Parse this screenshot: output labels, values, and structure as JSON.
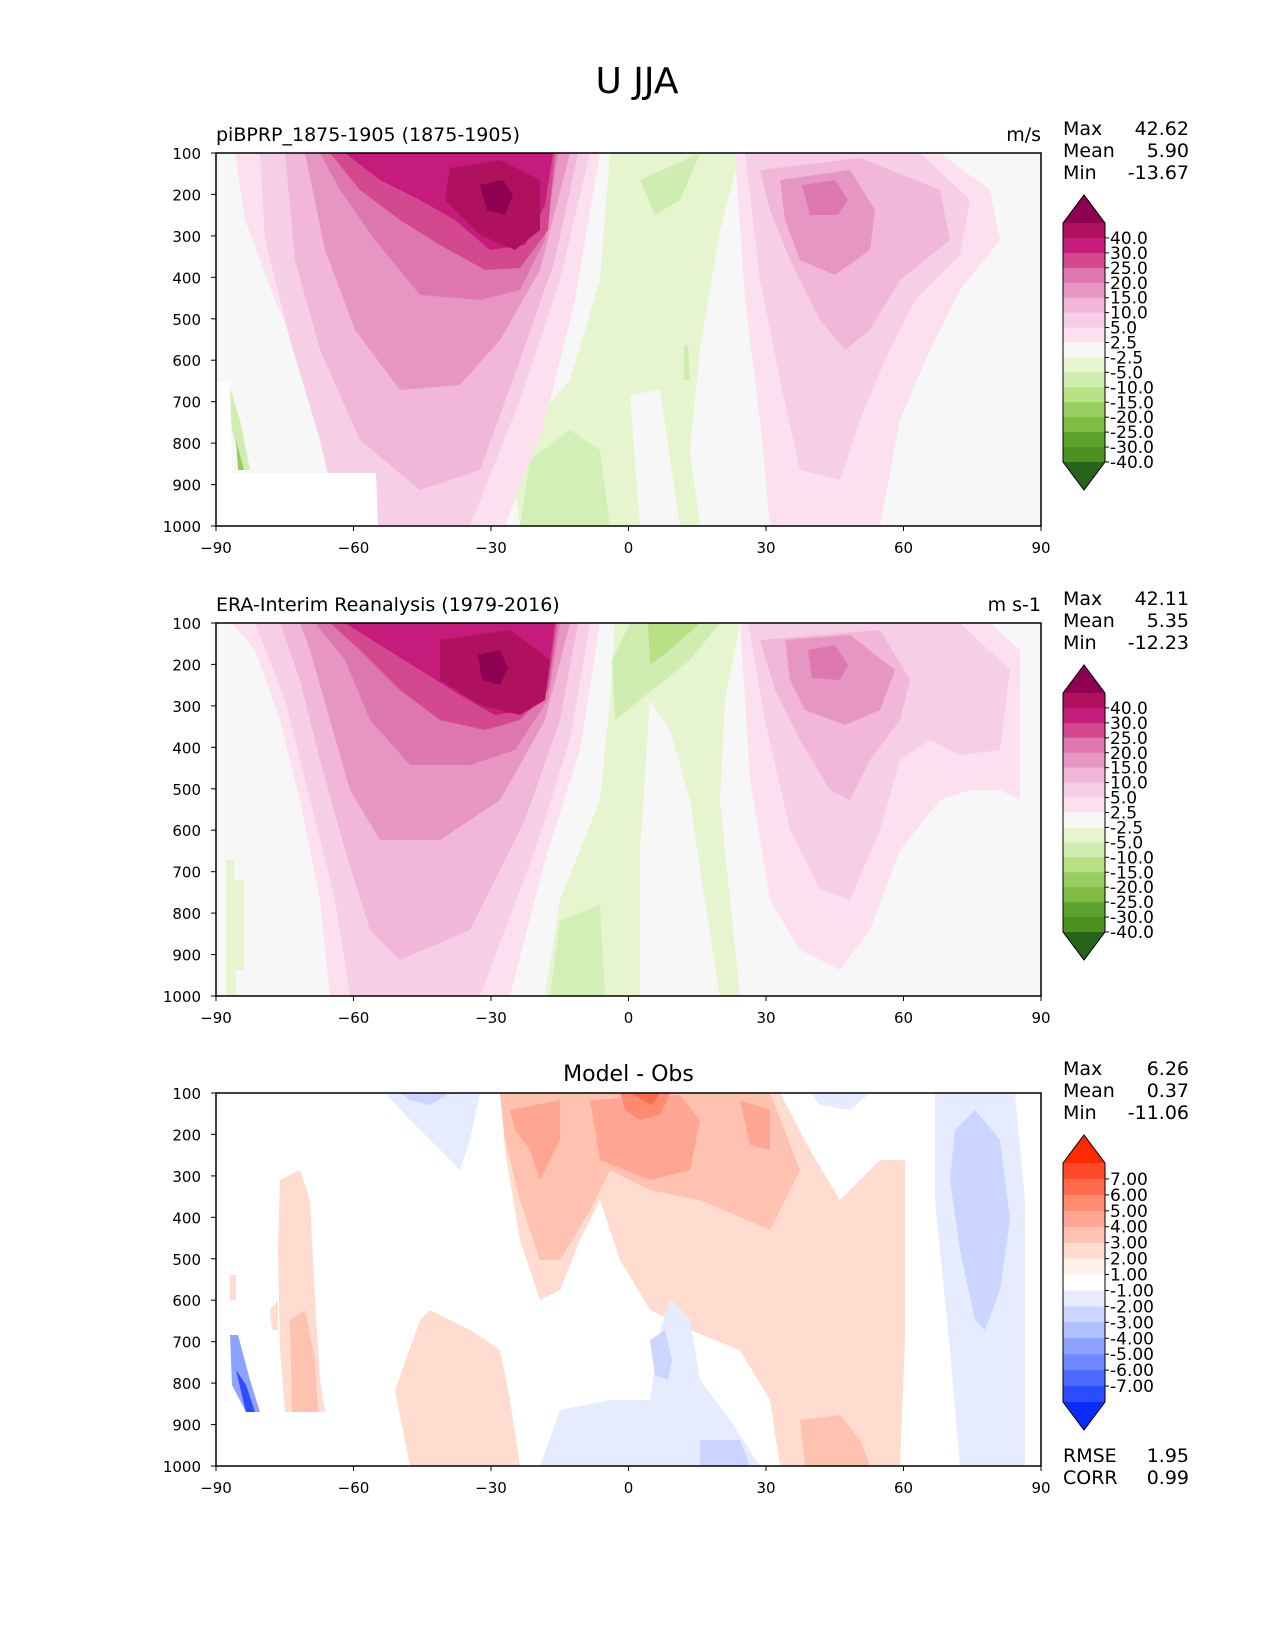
{
  "figure_title": "U JJA",
  "panels": [
    {
      "left_title": "piBPRP_1875-1905 (1875-1905)",
      "center_title": "",
      "units": "m/s",
      "stats": [
        {
          "label": "Max",
          "value": "42.62"
        },
        {
          "label": "Mean",
          "value": "5.90"
        },
        {
          "label": "Min",
          "value": "-13.67"
        }
      ],
      "bottom_stats": [],
      "colorbar": {
        "labels": [
          "40.0",
          "30.0",
          "25.0",
          "20.0",
          "15.0",
          "10.0",
          "5.0",
          "2.5",
          "-2.5",
          "-5.0",
          "-10.0",
          "-15.0",
          "-20.0",
          "-25.0",
          "-30.0",
          "-40.0"
        ],
        "colors": [
          "#8e0152",
          "#b0115f",
          "#c51b7d",
          "#d4488f",
          "#de77ae",
          "#e796c4",
          "#f1b6da",
          "#f6cfe6",
          "#fde0ef",
          "#f7f7f7",
          "#e6f5d0",
          "#cfedb0",
          "#b8e186",
          "#97cd61",
          "#7fbc41",
          "#5ca32e",
          "#4d9221",
          "#276419"
        ]
      }
    },
    {
      "left_title": "ERA-Interim Reanalysis (1979-2016)",
      "center_title": "",
      "units": "m s-1",
      "stats": [
        {
          "label": "Max",
          "value": "42.11"
        },
        {
          "label": "Mean",
          "value": "5.35"
        },
        {
          "label": "Min",
          "value": "-12.23"
        }
      ],
      "bottom_stats": [],
      "colorbar": {
        "labels": [
          "40.0",
          "30.0",
          "25.0",
          "20.0",
          "15.0",
          "10.0",
          "5.0",
          "2.5",
          "-2.5",
          "-5.0",
          "-10.0",
          "-15.0",
          "-20.0",
          "-25.0",
          "-30.0",
          "-40.0"
        ],
        "colors": [
          "#8e0152",
          "#b0115f",
          "#c51b7d",
          "#d4488f",
          "#de77ae",
          "#e796c4",
          "#f1b6da",
          "#f6cfe6",
          "#fde0ef",
          "#f7f7f7",
          "#e6f5d0",
          "#cfedb0",
          "#b8e186",
          "#97cd61",
          "#7fbc41",
          "#5ca32e",
          "#4d9221",
          "#276419"
        ]
      }
    },
    {
      "left_title": "",
      "center_title": "Model - Obs",
      "units": "",
      "stats": [
        {
          "label": "Max",
          "value": "6.26"
        },
        {
          "label": "Mean",
          "value": "0.37"
        },
        {
          "label": "Min",
          "value": "-11.06"
        }
      ],
      "bottom_stats": [
        {
          "label": "RMSE",
          "value": "1.95"
        },
        {
          "label": "CORR",
          "value": "0.99"
        }
      ],
      "colorbar": {
        "labels": [
          "7.00",
          "6.00",
          "5.00",
          "4.00",
          "3.00",
          "2.00",
          "1.00",
          "-1.00",
          "-2.00",
          "-3.00",
          "-4.00",
          "-5.00",
          "-6.00",
          "-7.00"
        ],
        "colors": [
          "#ff2a00",
          "#ff4a28",
          "#ff6a4c",
          "#ff8a70",
          "#ffa593",
          "#ffc1b0",
          "#ffdccf",
          "#fff1ec",
          "#ffffff",
          "#e6ebff",
          "#cbd5ff",
          "#b0c0ff",
          "#8ea3ff",
          "#6f88ff",
          "#4d6aff",
          "#2b4cff",
          "#0a2cff"
        ]
      }
    }
  ],
  "chart_data": [
    {
      "type": "heatmap",
      "title": "piBPRP_1875-1905 (1875-1905)",
      "units": "m/s",
      "xlabel": "",
      "ylabel": "",
      "x_ticks": [
        -90,
        -60,
        -30,
        0,
        30,
        60,
        90
      ],
      "y_ticks": [
        100,
        200,
        300,
        400,
        500,
        600,
        700,
        800,
        900,
        1000
      ],
      "xlim": [
        -90,
        90
      ],
      "ylim": [
        1000,
        100
      ],
      "levels": [
        -40,
        -30,
        -25,
        -20,
        -15,
        -10,
        -5,
        -2.5,
        2.5,
        5,
        10,
        15,
        20,
        25,
        30,
        40
      ],
      "features": [
        {
          "name": "southern jet",
          "center": [
            -28,
            200
          ],
          "value": 42.62
        },
        {
          "name": "northern jet",
          "center": [
            45,
            200
          ],
          "value": 22
        },
        {
          "name": "tropical easterlies",
          "center": [
            5,
            500
          ],
          "value": -5
        },
        {
          "name": "southern polar easterlies",
          "center": [
            -86,
            850
          ],
          "value": -13.67
        }
      ]
    },
    {
      "type": "heatmap",
      "title": "ERA-Interim Reanalysis (1979-2016)",
      "units": "m s-1",
      "xlabel": "",
      "ylabel": "",
      "x_ticks": [
        -90,
        -60,
        -30,
        0,
        30,
        60,
        90
      ],
      "y_ticks": [
        100,
        200,
        300,
        400,
        500,
        600,
        700,
        800,
        900,
        1000
      ],
      "xlim": [
        -90,
        90
      ],
      "ylim": [
        1000,
        100
      ],
      "levels": [
        -40,
        -30,
        -25,
        -20,
        -15,
        -10,
        -5,
        -2.5,
        2.5,
        5,
        10,
        15,
        20,
        25,
        30,
        40
      ],
      "features": [
        {
          "name": "southern jet",
          "center": [
            -30,
            200
          ],
          "value": 42.11
        },
        {
          "name": "northern jet",
          "center": [
            45,
            200
          ],
          "value": 22
        },
        {
          "name": "tropical easterlies",
          "center": [
            5,
            300
          ],
          "value": -8
        },
        {
          "name": "southern polar easterlies",
          "center": [
            -88,
            800
          ],
          "value": -12.23
        }
      ]
    },
    {
      "type": "heatmap",
      "title": "Model - Obs",
      "units": "",
      "xlabel": "",
      "ylabel": "",
      "x_ticks": [
        -90,
        -60,
        -30,
        0,
        30,
        60,
        90
      ],
      "y_ticks": [
        100,
        200,
        300,
        400,
        500,
        600,
        700,
        800,
        900,
        1000
      ],
      "xlim": [
        -90,
        90
      ],
      "ylim": [
        1000,
        100
      ],
      "levels": [
        -7,
        -6,
        -5,
        -4,
        -3,
        -2,
        -1,
        1,
        2,
        3,
        4,
        5,
        6,
        7
      ],
      "rmse": 1.95,
      "corr": 0.99,
      "features": [
        {
          "name": "upper tropical positive",
          "center": [
            0,
            130
          ],
          "value": 6.26
        },
        {
          "name": "northern polar negative",
          "center": [
            78,
            350
          ],
          "value": -4
        },
        {
          "name": "southern polar negative",
          "center": [
            -86,
            820
          ],
          "value": -11.06
        }
      ]
    }
  ]
}
